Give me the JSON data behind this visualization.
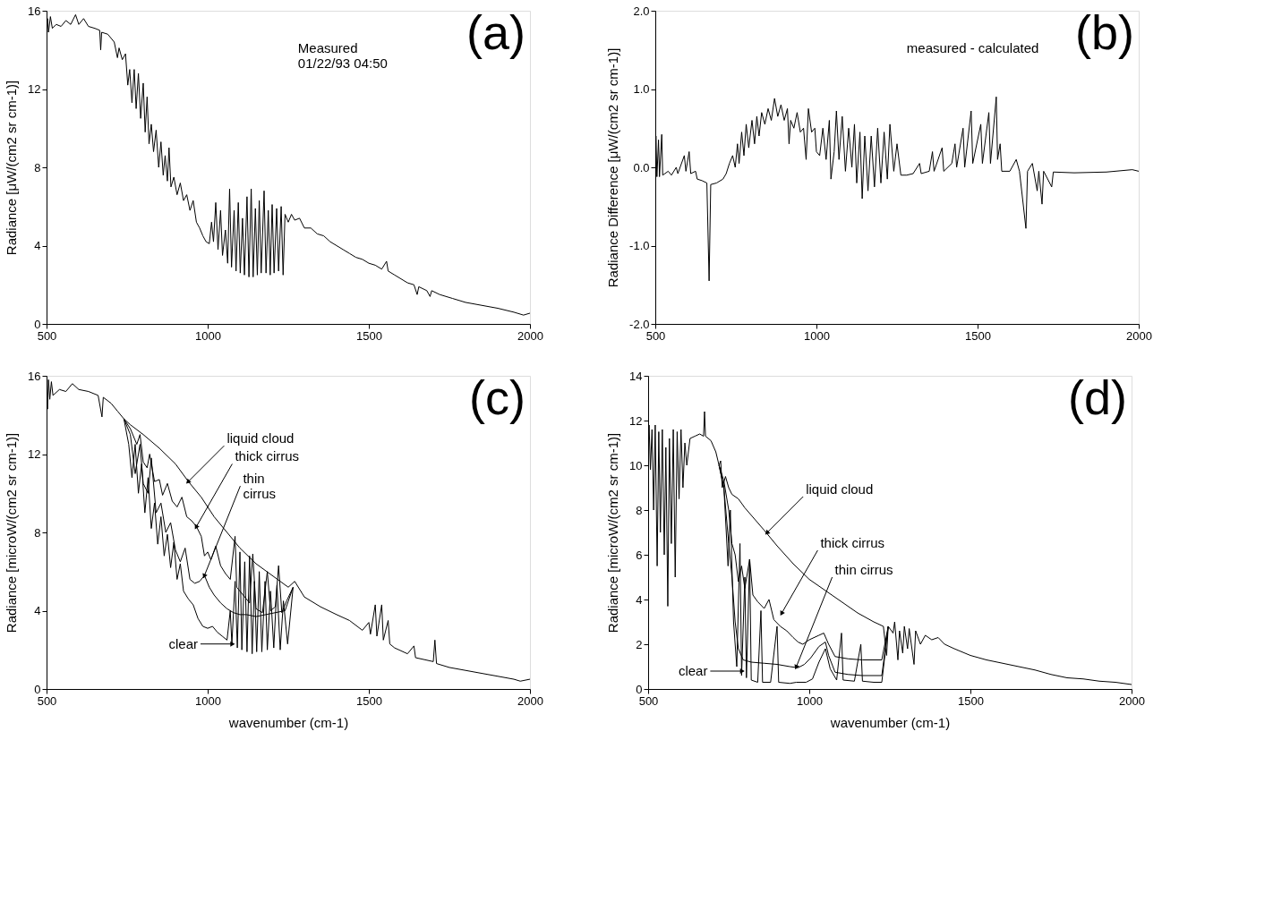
{
  "chart_data": [
    {
      "type": "line",
      "title": "(a)",
      "ylabel": "Radiance [μW/(cm2 sr cm-1)]",
      "xlim": [
        500,
        2000
      ],
      "xticks": [
        500,
        1000,
        1500,
        2000
      ],
      "ylim": [
        0,
        16
      ],
      "yticks": [
        0,
        4,
        8,
        12,
        16
      ],
      "line_style": "solid",
      "annotations": [
        "Measured\n01/22/93 04:50"
      ],
      "series": [
        {
          "color": "#000000",
          "x": [
            500,
            503,
            506,
            512,
            518,
            530,
            545,
            560,
            575,
            590,
            600,
            615,
            630,
            650,
            665,
            668,
            671,
            690,
            710,
            720,
            725,
            735,
            745,
            752,
            758,
            765,
            772,
            778,
            785,
            792,
            800,
            806,
            812,
            818,
            825,
            832,
            840,
            848,
            855,
            862,
            868,
            875,
            880,
            886,
            895,
            905,
            915,
            925,
            935,
            945,
            955,
            965,
            975,
            985,
            995,
            1005,
            1012,
            1018,
            1025,
            1032,
            1040,
            1046,
            1055,
            1062,
            1068,
            1074,
            1082,
            1088,
            1095,
            1101,
            1108,
            1114,
            1122,
            1128,
            1135,
            1141,
            1148,
            1154,
            1160,
            1166,
            1175,
            1181,
            1188,
            1194,
            1200,
            1206,
            1214,
            1220,
            1228,
            1234,
            1240,
            1250,
            1260,
            1270,
            1285,
            1300,
            1320,
            1340,
            1360,
            1380,
            1400,
            1420,
            1440,
            1460,
            1480,
            1500,
            1520,
            1540,
            1555,
            1560,
            1580,
            1600,
            1620,
            1640,
            1650,
            1655,
            1680,
            1690,
            1695,
            1720,
            1760,
            1800,
            1850,
            1900,
            1950,
            1980,
            2000
          ],
          "values": [
            15.0,
            15.6,
            14.9,
            15.7,
            15.1,
            15.3,
            15.2,
            15.5,
            15.3,
            15.8,
            15.3,
            15.6,
            15.2,
            15.1,
            15.0,
            14.0,
            14.9,
            14.8,
            14.4,
            13.6,
            14.1,
            13.5,
            13.8,
            12.2,
            13.0,
            11.3,
            13.0,
            11.0,
            12.8,
            10.5,
            12.3,
            9.8,
            11.6,
            9.2,
            10.2,
            8.8,
            9.9,
            8.0,
            9.3,
            7.6,
            8.6,
            7.3,
            9.0,
            7.0,
            7.5,
            6.6,
            7.2,
            6.3,
            6.6,
            5.8,
            6.3,
            5.2,
            4.9,
            4.5,
            4.2,
            4.1,
            5.2,
            4.2,
            6.2,
            3.8,
            5.8,
            3.5,
            4.8,
            3.1,
            6.9,
            2.9,
            5.8,
            2.7,
            6.2,
            2.6,
            5.4,
            2.5,
            6.5,
            2.4,
            6.9,
            2.4,
            5.9,
            2.5,
            6.3,
            2.6,
            6.8,
            2.6,
            5.8,
            2.5,
            6.1,
            2.6,
            5.9,
            2.7,
            6.0,
            2.5,
            5.6,
            5.2,
            5.6,
            5.3,
            5.4,
            4.9,
            4.9,
            4.6,
            4.5,
            4.2,
            4.0,
            3.8,
            3.6,
            3.4,
            3.3,
            3.1,
            3.0,
            2.8,
            3.2,
            2.7,
            2.5,
            2.3,
            2.1,
            2.0,
            1.5,
            1.9,
            1.7,
            1.4,
            1.7,
            1.5,
            1.3,
            1.1,
            0.95,
            0.8,
            0.6,
            0.45,
            0.55
          ]
        }
      ]
    },
    {
      "type": "line",
      "title": "(b)",
      "ylabel": "Radiance Difference [μW/(cm2 sr cm-1)]",
      "xlim": [
        500,
        2000
      ],
      "xticks": [
        500,
        1000,
        1500,
        2000
      ],
      "ylim": [
        -2,
        2
      ],
      "yticks": [
        {
          "value": -2,
          "label": "-2.0"
        },
        {
          "value": -1,
          "label": "-1.0"
        },
        {
          "value": 0,
          "label": "0.0"
        },
        {
          "value": 1,
          "label": "1.0"
        },
        {
          "value": 2,
          "label": "2.0"
        }
      ],
      "line_style": "solid",
      "annotations": [
        "measured - calculated"
      ],
      "series": [
        {
          "color": "#000000",
          "x": [
            500,
            502,
            505,
            510,
            513,
            520,
            523,
            540,
            550,
            565,
            570,
            590,
            595,
            605,
            610,
            625,
            630,
            645,
            660,
            667,
            672,
            690,
            710,
            720,
            730,
            740,
            748,
            755,
            760,
            768,
            775,
            782,
            790,
            800,
            808,
            815,
            822,
            830,
            840,
            850,
            860,
            870,
            880,
            890,
            900,
            910,
            915,
            920,
            930,
            940,
            950,
            960,
            968,
            975,
            985,
            995,
            1000,
            1010,
            1020,
            1030,
            1040,
            1045,
            1055,
            1062,
            1070,
            1080,
            1090,
            1100,
            1110,
            1118,
            1125,
            1135,
            1142,
            1150,
            1160,
            1170,
            1180,
            1190,
            1200,
            1210,
            1220,
            1228,
            1240,
            1250,
            1262,
            1280,
            1300,
            1320,
            1325,
            1350,
            1360,
            1365,
            1390,
            1395,
            1420,
            1430,
            1435,
            1455,
            1460,
            1480,
            1485,
            1510,
            1515,
            1535,
            1540,
            1558,
            1562,
            1570,
            1575,
            1600,
            1620,
            1630,
            1650,
            1655,
            1670,
            1685,
            1690,
            1700,
            1705,
            1730,
            1735,
            1800,
            1900,
            1980,
            2000
          ],
          "values": [
            -0.1,
            0.4,
            -0.12,
            0.35,
            -0.12,
            0.42,
            -0.1,
            -0.05,
            -0.1,
            0.0,
            -0.08,
            0.15,
            -0.05,
            0.2,
            -0.08,
            -0.05,
            -0.15,
            -0.17,
            -0.2,
            -1.45,
            -0.22,
            -0.2,
            -0.15,
            -0.08,
            0.05,
            0.15,
            0.0,
            0.3,
            0.05,
            0.45,
            0.15,
            0.55,
            0.25,
            0.6,
            0.3,
            0.65,
            0.4,
            0.7,
            0.55,
            0.75,
            0.6,
            0.88,
            0.65,
            0.8,
            0.6,
            0.75,
            0.3,
            0.6,
            0.5,
            0.7,
            0.45,
            0.5,
            0.1,
            0.75,
            0.45,
            0.5,
            0.2,
            0.15,
            0.5,
            0.1,
            0.6,
            -0.15,
            0.2,
            0.72,
            0.1,
            0.65,
            -0.05,
            0.5,
            0.0,
            0.55,
            -0.2,
            0.45,
            -0.4,
            0.4,
            -0.3,
            0.4,
            -0.25,
            0.5,
            -0.2,
            0.45,
            -0.15,
            0.55,
            -0.05,
            0.3,
            -0.1,
            -0.1,
            -0.08,
            0.05,
            -0.08,
            -0.05,
            0.2,
            -0.05,
            0.25,
            -0.05,
            0.05,
            0.3,
            0.0,
            0.5,
            0.0,
            0.72,
            0.05,
            0.55,
            0.05,
            0.7,
            0.05,
            0.9,
            0.1,
            0.3,
            -0.05,
            -0.05,
            0.1,
            -0.05,
            -0.78,
            -0.05,
            0.05,
            -0.3,
            -0.05,
            -0.47,
            -0.05,
            -0.25,
            -0.06,
            -0.07,
            -0.06,
            -0.03,
            -0.05
          ]
        }
      ]
    },
    {
      "type": "line",
      "title": "(c)",
      "xlabel": "wavenumber (cm-1)",
      "ylabel": "Radiance [microW/(cm2 sr cm-1)]",
      "xlim": [
        500,
        2000
      ],
      "xticks": [
        500,
        1000,
        1500,
        2000
      ],
      "ylim": [
        0,
        16
      ],
      "yticks": [
        0,
        4,
        8,
        12,
        16
      ],
      "line_style": "solid",
      "annotations": [
        {
          "text": "liquid cloud",
          "x": 940,
          "y": 10.6
        },
        {
          "text": "thick cirrus",
          "x": 965,
          "y": 8.3
        },
        {
          "text": "thin\ncirrus",
          "x": 990,
          "y": 5.8
        },
        {
          "text": "clear",
          "x": 1075,
          "y": 2.3
        }
      ],
      "series": [
        {
          "color": "#000000",
          "x": [
            500,
            503,
            506,
            510,
            515,
            520,
            540,
            560,
            580,
            600,
            630,
            660,
            672,
            676,
            700,
            720,
            740,
            760,
            800,
            850,
            900,
            940,
            980,
            1020,
            1060,
            1100,
            1150,
            1200,
            1250,
            1270,
            1300,
            1350,
            1400,
            1440,
            1480,
            1500,
            1505,
            1520,
            1525,
            1540,
            1545,
            1560,
            1565,
            1580,
            1620,
            1640,
            1645,
            1700,
            1705,
            1710,
            1750,
            1800,
            1850,
            1900,
            1950,
            1970,
            2000
          ],
          "values": [
            15.0,
            14.3,
            15.8,
            14.8,
            15.7,
            15.0,
            15.3,
            15.2,
            15.6,
            15.3,
            15.2,
            15.0,
            13.9,
            14.9,
            14.6,
            14.2,
            13.8,
            13.5,
            13.0,
            12.3,
            11.5,
            10.6,
            9.8,
            8.8,
            8.0,
            7.2,
            6.4,
            5.8,
            5.2,
            5.5,
            4.7,
            4.2,
            3.8,
            3.5,
            3.0,
            3.4,
            2.8,
            4.3,
            2.7,
            4.3,
            2.5,
            3.5,
            2.3,
            2.1,
            1.8,
            2.2,
            1.6,
            1.4,
            2.5,
            1.3,
            1.1,
            0.95,
            0.8,
            0.65,
            0.5,
            0.4,
            0.5
          ]
        },
        {
          "color": "#000000",
          "x": [
            740,
            760,
            780,
            790,
            800,
            812,
            820,
            835,
            850,
            860,
            875,
            890,
            905,
            920,
            935,
            950,
            965,
            980,
            990,
            1000,
            1010,
            1025,
            1040,
            1055,
            1070,
            1085,
            1090,
            1110,
            1130,
            1140,
            1150,
            1170,
            1185,
            1195,
            1210,
            1220,
            1230,
            1245,
            1265
          ],
          "values": [
            13.8,
            13.3,
            12.5,
            13.0,
            11.6,
            11.3,
            12.0,
            10.6,
            10.7,
            9.9,
            10.5,
            9.6,
            9.3,
            9.8,
            8.8,
            8.6,
            8.3,
            7.8,
            6.8,
            7.0,
            6.6,
            7.3,
            6.3,
            5.9,
            5.6,
            7.8,
            5.2,
            4.8,
            4.4,
            6.9,
            4.1,
            3.9,
            6.0,
            4.0,
            4.2,
            6.3,
            3.9,
            4.5,
            5.2
          ]
        },
        {
          "color": "#000000",
          "x": [
            740,
            760,
            775,
            790,
            800,
            815,
            825,
            840,
            855,
            870,
            885,
            900,
            915,
            930,
            945,
            960,
            975,
            990,
            1005,
            1020,
            1040,
            1060,
            1080,
            1100,
            1120,
            1150,
            1180,
            1210,
            1240,
            1265
          ],
          "values": [
            13.8,
            13.0,
            11.0,
            12.5,
            10.5,
            10.0,
            11.8,
            9.0,
            9.5,
            8.0,
            8.5,
            7.1,
            6.5,
            7.2,
            5.6,
            5.4,
            5.5,
            5.8,
            5.2,
            4.8,
            4.4,
            4.1,
            3.9,
            3.8,
            3.8,
            3.7,
            3.8,
            3.9,
            4.0,
            5.2
          ]
        },
        {
          "color": "#000000",
          "x": [
            740,
            755,
            765,
            775,
            785,
            795,
            805,
            815,
            825,
            835,
            845,
            855,
            865,
            875,
            885,
            895,
            905,
            915,
            925,
            940,
            955,
            970,
            985,
            1000,
            1015,
            1030,
            1045,
            1060,
            1070,
            1075,
            1085,
            1092,
            1100,
            1106,
            1115,
            1122,
            1130,
            1138,
            1145,
            1152,
            1160,
            1168,
            1178,
            1185,
            1195,
            1205,
            1215,
            1225,
            1235,
            1248,
            1265
          ],
          "values": [
            13.8,
            12.5,
            10.8,
            12.5,
            10.0,
            11.5,
            9.0,
            10.8,
            8.2,
            9.5,
            7.4,
            8.8,
            6.8,
            7.9,
            6.2,
            7.5,
            5.6,
            6.4,
            5.0,
            4.6,
            4.3,
            3.6,
            3.2,
            3.1,
            3.2,
            2.9,
            2.7,
            2.5,
            4.0,
            2.3,
            5.5,
            2.1,
            7.0,
            2.0,
            6.5,
            1.9,
            6.8,
            1.8,
            5.5,
            1.9,
            6.0,
            1.9,
            5.5,
            2.0,
            5.0,
            2.1,
            5.3,
            2.0,
            4.5,
            2.3,
            5.2
          ]
        }
      ]
    },
    {
      "type": "line",
      "title": "(d)",
      "xlabel": "wavenumber (cm-1)",
      "ylabel": "Radiance [microW/(cm2 sr cm-1)]",
      "xlim": [
        500,
        2000
      ],
      "xticks": [
        500,
        1000,
        1500,
        2000
      ],
      "ylim": [
        0,
        14
      ],
      "yticks": [
        0,
        2,
        4,
        6,
        8,
        10,
        12,
        14
      ],
      "line_style": "solid",
      "annotations": [
        {
          "text": "liquid cloud",
          "x": 870,
          "y": 7.0
        },
        {
          "text": "thick cirrus",
          "x": 915,
          "y": 3.4
        },
        {
          "text": "thin cirrus",
          "x": 960,
          "y": 1.0
        },
        {
          "text": "clear",
          "x": 790,
          "y": 0.8
        }
      ],
      "series": [
        {
          "color": "#000000",
          "x": [
            500,
            503,
            507,
            512,
            517,
            522,
            528,
            533,
            538,
            544,
            550,
            555,
            561,
            566,
            572,
            578,
            584,
            590,
            596,
            602,
            608,
            614,
            620,
            630,
            645,
            660,
            672,
            675,
            678,
            695,
            710,
            720,
            725,
            730,
            740,
            750,
            760,
            780,
            800,
            830,
            860,
            900,
            950,
            1000,
            1050,
            1100,
            1150,
            1200,
            1230,
            1240,
            1245,
            1260,
            1265,
            1275,
            1280,
            1290,
            1295,
            1305,
            1310,
            1325,
            1330,
            1345,
            1360,
            1380,
            1400,
            1420,
            1450,
            1500,
            1550,
            1600,
            1650,
            1700,
            1750,
            1800,
            1850,
            1900,
            1950,
            2000
          ],
          "values": [
            10.5,
            11.8,
            9.8,
            11.6,
            8.0,
            11.8,
            5.5,
            11.5,
            7.0,
            11.6,
            6.0,
            10.8,
            3.7,
            11.2,
            6.5,
            11.6,
            5.0,
            11.5,
            8.5,
            11.6,
            9.0,
            11.0,
            10.0,
            11.2,
            11.3,
            11.4,
            11.3,
            12.4,
            11.3,
            11.1,
            10.6,
            10.0,
            10.2,
            9.0,
            9.5,
            9.0,
            8.7,
            8.5,
            8.1,
            7.6,
            7.1,
            6.4,
            5.6,
            4.9,
            4.4,
            3.9,
            3.4,
            3.0,
            2.8,
            1.5,
            2.8,
            2.5,
            3.0,
            1.3,
            2.6,
            1.6,
            2.8,
            1.8,
            2.7,
            1.1,
            2.6,
            2.0,
            2.4,
            2.2,
            2.3,
            2.0,
            1.8,
            1.5,
            1.3,
            1.15,
            1.0,
            0.85,
            0.65,
            0.5,
            0.45,
            0.35,
            0.3,
            0.2
          ]
        },
        {
          "color": "#000000",
          "x": [
            720,
            735,
            750,
            760,
            770,
            780,
            790,
            800,
            815,
            825,
            840,
            860,
            875,
            890,
            910,
            930,
            950,
            965,
            980,
            1000,
            1030,
            1045,
            1060,
            1080,
            1120,
            1165,
            1200,
            1225,
            1245
          ],
          "values": [
            10.0,
            9.3,
            8.0,
            6.5,
            6.0,
            4.8,
            5.5,
            4.5,
            5.8,
            4.2,
            3.9,
            3.6,
            4.0,
            3.1,
            2.8,
            2.6,
            2.3,
            2.1,
            2.0,
            2.2,
            2.4,
            2.5,
            2.0,
            1.45,
            1.35,
            1.3,
            1.3,
            1.3,
            2.8
          ]
        },
        {
          "color": "#000000",
          "x": [
            720,
            735,
            750,
            760,
            770,
            780,
            795,
            820,
            860,
            900,
            940,
            965,
            985,
            1005,
            1030,
            1050,
            1060,
            1080,
            1120,
            1165,
            1200,
            1225,
            1245
          ],
          "values": [
            10.0,
            9.0,
            6.5,
            5.0,
            3.0,
            1.8,
            1.3,
            1.2,
            1.15,
            1.1,
            1.0,
            0.95,
            1.1,
            1.4,
            1.9,
            2.1,
            1.5,
            0.75,
            0.65,
            0.6,
            0.6,
            0.6,
            2.8
          ]
        },
        {
          "color": "#000000",
          "x": [
            720,
            735,
            748,
            755,
            765,
            775,
            785,
            790,
            800,
            805,
            815,
            820,
            840,
            850,
            855,
            880,
            900,
            905,
            940,
            960,
            990,
            1010,
            1030,
            1050,
            1065,
            1085,
            1100,
            1105,
            1140,
            1160,
            1165,
            1200,
            1225,
            1245
          ],
          "values": [
            10.0,
            9.0,
            5.5,
            8.0,
            3.0,
            1.0,
            6.5,
            0.6,
            5.0,
            0.5,
            5.8,
            0.4,
            0.3,
            3.5,
            0.3,
            0.3,
            2.8,
            0.3,
            0.25,
            0.3,
            0.3,
            0.45,
            1.2,
            1.8,
            0.9,
            0.4,
            2.5,
            0.4,
            0.35,
            2.0,
            0.35,
            0.3,
            0.3,
            2.8
          ]
        }
      ]
    }
  ]
}
